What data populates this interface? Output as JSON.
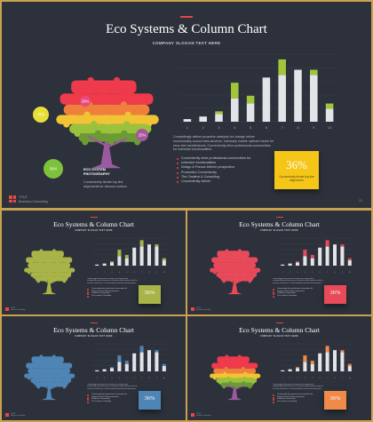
{
  "slide": {
    "title": "Eco Systems & Column Chart",
    "subtitle": "COMPANY SLOGAN TEXT HERE",
    "tree_label_line1": "ECO SYSTEM",
    "tree_label_line2": "PHOTOGRAPHY",
    "tree_caption_line1": "Conveniently iterate top-line",
    "tree_caption_line2": "alignments for virtuous metrics.",
    "body_lines": [
      "Compellingly deliver proactive catalysts for change before",
      "economically sound meta-services. Intrinsicly enable optimal results for",
      "error-free architectures. Conveniently drive professional communities",
      "for extensive functionalities."
    ],
    "bullets": [
      "Conveniently drive professional communities for",
      "extensive functionalities",
      "Design & Pursue Deliver prospective",
      "Production Conveniently",
      "The Creative & Consulting",
      "Conveniently deliver"
    ],
    "note_value": "36%",
    "note_line1": "Conveniently iterate top-line",
    "note_line2": "alignments",
    "logo_line1": "TITLE",
    "logo_line2": "Business Consulting",
    "page_number": "21"
  },
  "bubbles": [
    {
      "label": "75%",
      "color": "#e8e038"
    },
    {
      "label": "20%",
      "color": "#e84a7a"
    },
    {
      "label": "25%",
      "color": "#a7579b"
    },
    {
      "label": "30%",
      "color": "#7ec23c"
    }
  ],
  "tree_layers": [
    "#ee3a4a",
    "#ee3a4a",
    "#f07f3e",
    "#f0c434",
    "#9ac23c",
    "#6c9a35",
    "#9b5aa0"
  ],
  "chart_data": {
    "type": "bar",
    "stacked": true,
    "categories": [
      "1",
      "2",
      "3",
      "4",
      "5",
      "6",
      "7",
      "8",
      "9",
      "10"
    ],
    "series": [
      {
        "color": "#e3e4e8",
        "values": [
          1,
          2,
          3,
          9,
          7,
          17,
          18,
          20,
          18,
          5
        ]
      },
      {
        "color": "#a1c63a",
        "values": [
          0,
          0,
          1,
          6,
          3,
          0,
          6,
          0,
          2,
          2
        ]
      }
    ],
    "ylim": [
      0,
      26
    ]
  },
  "thumbnails": [
    {
      "name": "green",
      "accent": "#a8b447",
      "tree_color": "#a8b447",
      "note_color": "#a8b447",
      "note_value": "36%",
      "title": "Eco Systems & Column Chart",
      "logo": "TITLE"
    },
    {
      "name": "red",
      "accent": "#e84a5a",
      "tree_color": "#e84a5a",
      "note_color": "#e84a5a",
      "note_value": "36%",
      "title": "Eco Systems & Column Chart",
      "logo": "TITLE"
    },
    {
      "name": "blue",
      "accent": "#4f85b5",
      "tree_color": "#4f85b5",
      "note_color": "#4f85b5",
      "note_value": "36%",
      "title": "Eco Systems & Column Chart",
      "logo": "TITLE"
    },
    {
      "name": "orange",
      "accent": "#f08a4b",
      "tree_color": "multi",
      "note_color": "#f08a4b",
      "note_value": "36%",
      "title": "Eco Systems & Column Chart",
      "logo": "TITLE"
    }
  ],
  "colors": {
    "note_main": "#f5c518",
    "accent": "#e84545",
    "background": "#2c313b"
  }
}
